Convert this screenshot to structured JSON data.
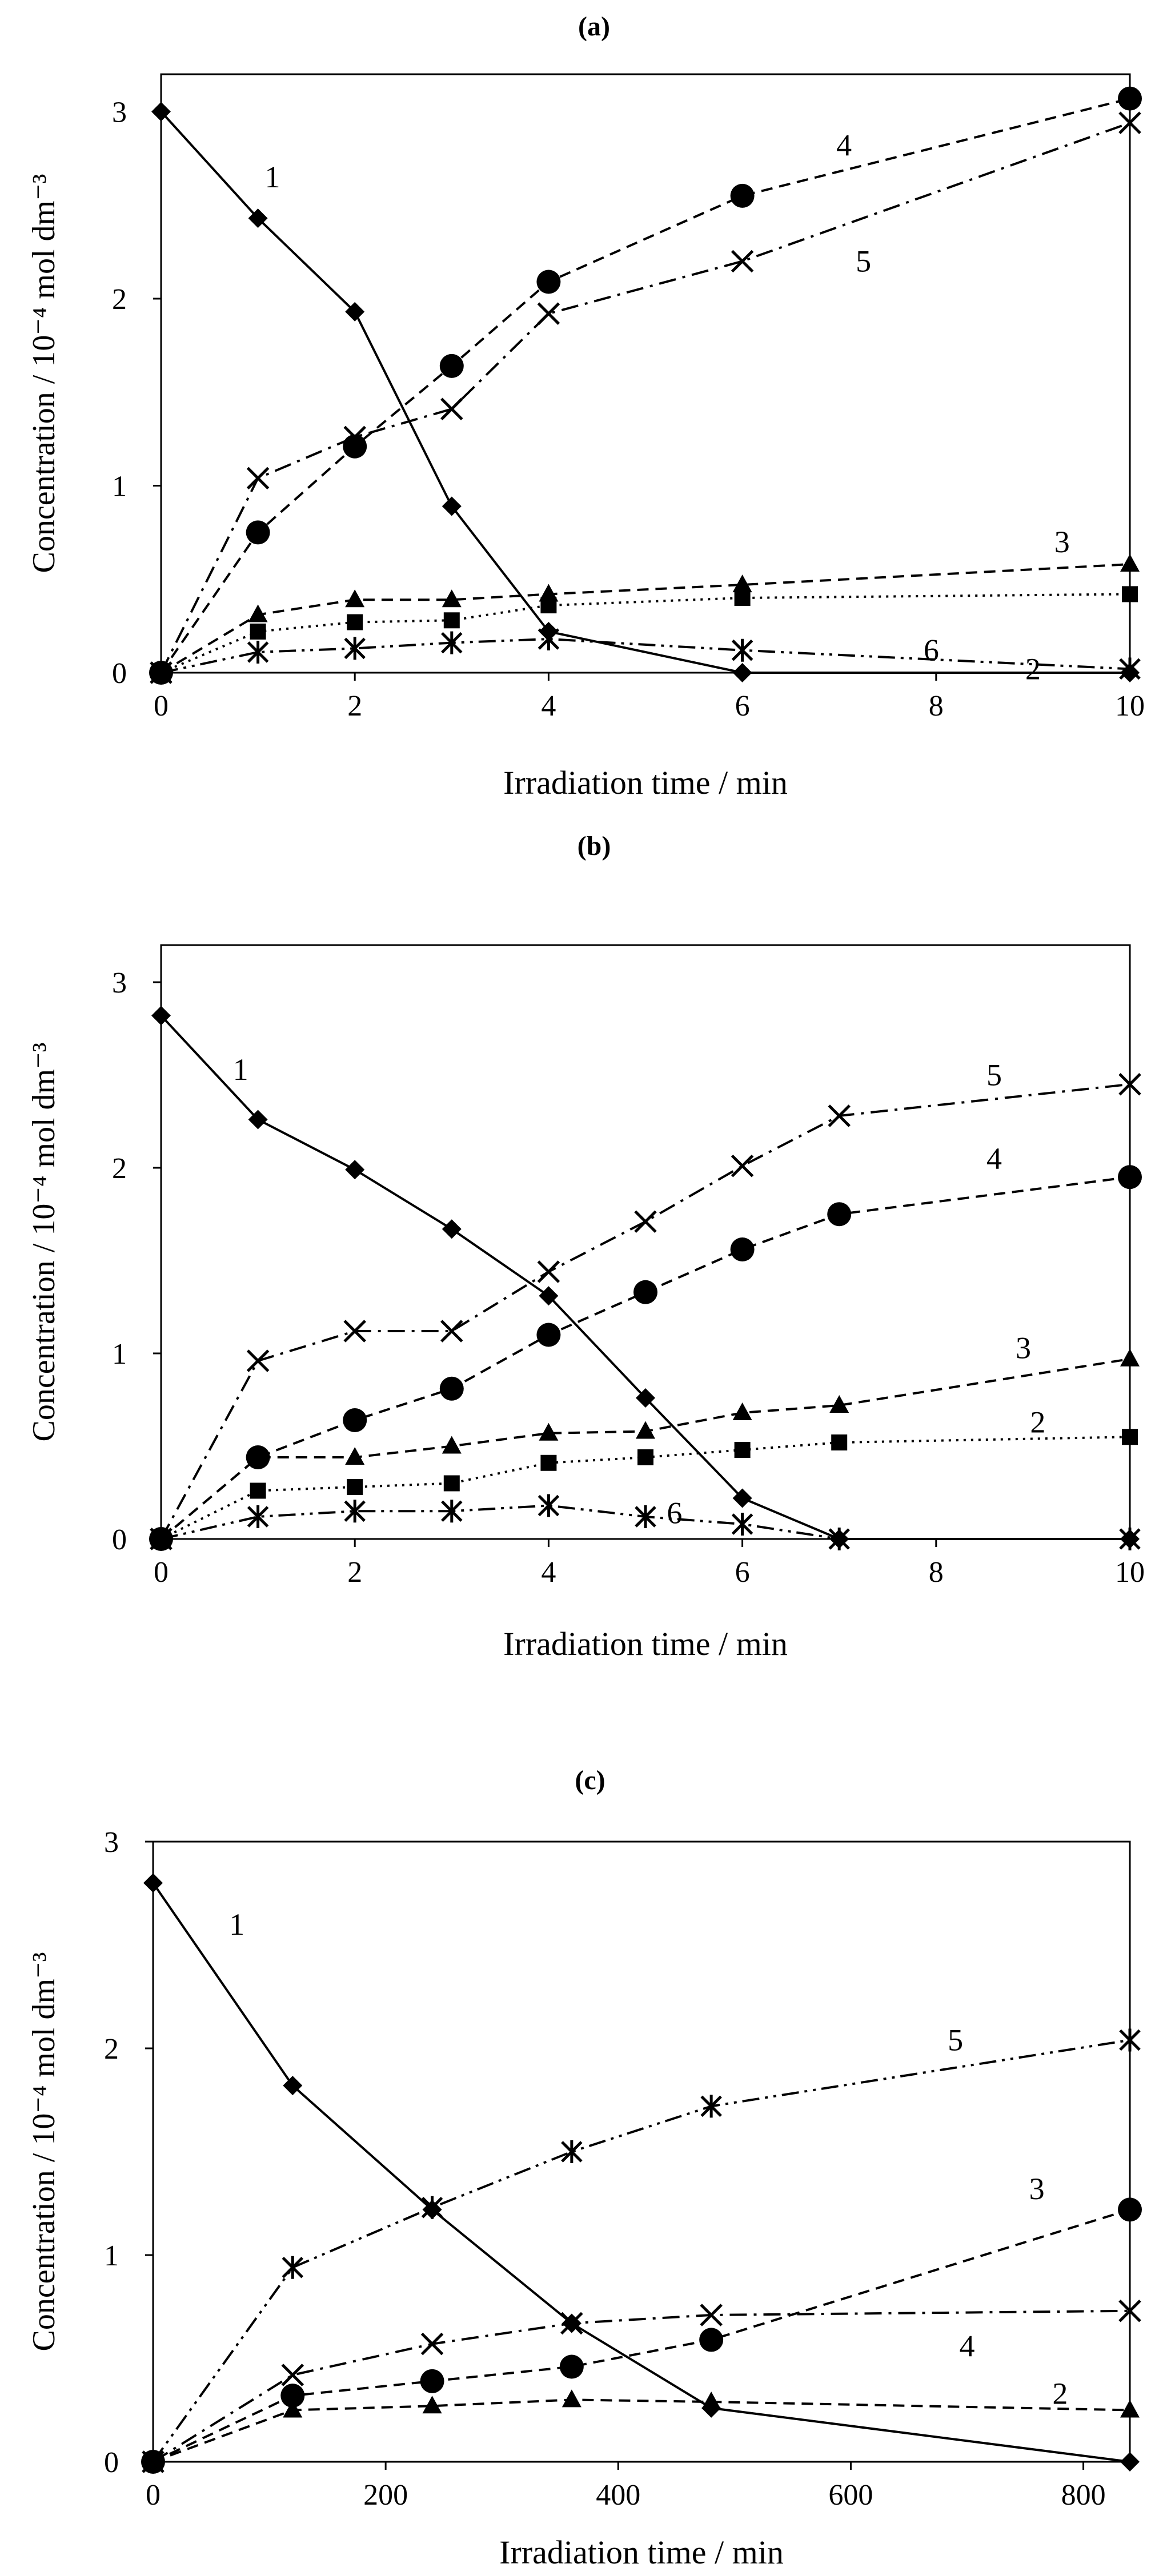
{
  "chart_data": [
    {
      "panel_label": "(a)",
      "type": "line",
      "xlabel": "Irradiation time / min",
      "ylabel": "Concentration / 10⁻⁴ mol dm⁻³",
      "xlim": [
        0,
        10
      ],
      "ylim": [
        0,
        3.2
      ],
      "xticks": [
        0,
        2,
        4,
        6,
        8,
        10
      ],
      "yticks": [
        0,
        1,
        2,
        3
      ],
      "series": [
        {
          "name": "1",
          "marker": "diamond",
          "dash": "solid",
          "x": [
            0,
            1,
            2,
            3,
            4,
            6,
            10
          ],
          "values": [
            3.0,
            2.43,
            1.93,
            0.89,
            0.22,
            0.0,
            0.0
          ]
        },
        {
          "name": "2",
          "marker": "square",
          "dash": "dotted",
          "x": [
            0,
            1,
            2,
            3,
            4,
            6,
            10
          ],
          "values": [
            0.0,
            0.22,
            0.27,
            0.28,
            0.36,
            0.4,
            0.42
          ]
        },
        {
          "name": "3",
          "marker": "triangle",
          "dash": "dash",
          "x": [
            0,
            1,
            2,
            3,
            4,
            6,
            10
          ],
          "values": [
            0.0,
            0.31,
            0.39,
            0.39,
            0.42,
            0.47,
            0.58
          ]
        },
        {
          "name": "4",
          "marker": "circle",
          "dash": "dash",
          "x": [
            0,
            1,
            2,
            3,
            4,
            6,
            10
          ],
          "values": [
            0.0,
            0.75,
            1.21,
            1.64,
            2.09,
            2.55,
            3.07
          ]
        },
        {
          "name": "5",
          "marker": "x",
          "dash": "dashdot",
          "x": [
            0,
            1,
            2,
            3,
            4,
            6,
            10
          ],
          "values": [
            0.0,
            1.04,
            1.26,
            1.41,
            1.92,
            2.2,
            2.94
          ]
        },
        {
          "name": "6",
          "marker": "star",
          "dash": "dashdotdot",
          "x": [
            0,
            1,
            2,
            3,
            4,
            6,
            10
          ],
          "values": [
            0.0,
            0.11,
            0.13,
            0.16,
            0.18,
            0.12,
            0.02
          ]
        }
      ],
      "curve_labels": [
        {
          "text": "1",
          "x": 1.15,
          "y": 2.65
        },
        {
          "text": "4",
          "x": 7.05,
          "y": 2.82
        },
        {
          "text": "5",
          "x": 7.25,
          "y": 2.2
        },
        {
          "text": "3",
          "x": 9.3,
          "y": 0.7
        },
        {
          "text": "6",
          "x": 7.95,
          "y": 0.12
        },
        {
          "text": "2",
          "x": 9.0,
          "y": 0.02
        }
      ]
    },
    {
      "panel_label": "(b)",
      "type": "line",
      "xlabel": "Irradiation time / min",
      "ylabel": "Concentration / 10⁻⁴ mol dm⁻³",
      "xlim": [
        0,
        10
      ],
      "ylim": [
        0,
        3.2
      ],
      "xticks": [
        0,
        2,
        4,
        6,
        8,
        10
      ],
      "yticks": [
        0,
        1,
        2,
        3
      ],
      "series": [
        {
          "name": "1",
          "marker": "diamond",
          "dash": "solid",
          "x": [
            0,
            1,
            2,
            3,
            4,
            5,
            6,
            7,
            10
          ],
          "values": [
            2.82,
            2.26,
            1.99,
            1.67,
            1.31,
            0.76,
            0.22,
            0.0,
            0.0
          ]
        },
        {
          "name": "2",
          "marker": "square",
          "dash": "dotted",
          "x": [
            0,
            1,
            2,
            3,
            4,
            5,
            6,
            7,
            10
          ],
          "values": [
            0.0,
            0.26,
            0.28,
            0.3,
            0.41,
            0.44,
            0.48,
            0.52,
            0.55
          ]
        },
        {
          "name": "3",
          "marker": "triangle",
          "dash": "dash",
          "x": [
            0,
            1,
            2,
            3,
            4,
            5,
            6,
            7,
            10
          ],
          "values": [
            0.0,
            0.44,
            0.44,
            0.5,
            0.57,
            0.58,
            0.68,
            0.72,
            0.97
          ]
        },
        {
          "name": "4",
          "marker": "circle",
          "dash": "dash",
          "x": [
            0,
            1,
            2,
            3,
            4,
            5,
            6,
            7,
            10
          ],
          "values": [
            0.0,
            0.44,
            0.64,
            0.81,
            1.1,
            1.33,
            1.56,
            1.75,
            1.95
          ]
        },
        {
          "name": "5",
          "marker": "x",
          "dash": "dashdot",
          "x": [
            0,
            1,
            2,
            3,
            4,
            5,
            6,
            7,
            10
          ],
          "values": [
            0.0,
            0.96,
            1.12,
            1.12,
            1.44,
            1.71,
            2.01,
            2.28,
            2.45
          ]
        },
        {
          "name": "6",
          "marker": "star",
          "dash": "dashdotdot",
          "x": [
            0,
            1,
            2,
            3,
            4,
            5,
            6,
            7,
            10
          ],
          "values": [
            0.0,
            0.12,
            0.15,
            0.15,
            0.18,
            0.12,
            0.08,
            0.0,
            0.0
          ]
        }
      ],
      "curve_labels": [
        {
          "text": "1",
          "x": 0.82,
          "y": 2.53
        },
        {
          "text": "5",
          "x": 8.6,
          "y": 2.5
        },
        {
          "text": "4",
          "x": 8.6,
          "y": 2.05
        },
        {
          "text": "3",
          "x": 8.9,
          "y": 1.03
        },
        {
          "text": "2",
          "x": 9.05,
          "y": 0.63
        },
        {
          "text": "6",
          "x": 5.3,
          "y": 0.14
        }
      ]
    },
    {
      "panel_label": "(c)",
      "type": "line",
      "xlabel": "Irradiation time / min",
      "ylabel": "Concentration / 10⁻⁴ mol dm⁻³",
      "xlim": [
        0,
        840
      ],
      "ylim": [
        0,
        3.0
      ],
      "xticks": [
        0,
        200,
        400,
        600,
        800
      ],
      "yticks": [
        0,
        1,
        2,
        3
      ],
      "series": [
        {
          "name": "1",
          "marker": "diamond",
          "dash": "solid",
          "x": [
            0,
            120,
            240,
            360,
            480,
            840
          ],
          "values": [
            2.8,
            1.82,
            1.22,
            0.67,
            0.26,
            0.0
          ]
        },
        {
          "name": "2",
          "marker": "triangle",
          "dash": "dash",
          "x": [
            0,
            120,
            240,
            360,
            480,
            840
          ],
          "values": [
            0.0,
            0.25,
            0.27,
            0.3,
            0.29,
            0.25
          ]
        },
        {
          "name": "3",
          "marker": "circle",
          "dash": "dash",
          "x": [
            0,
            120,
            240,
            360,
            480,
            840
          ],
          "values": [
            0.0,
            0.32,
            0.39,
            0.46,
            0.59,
            1.22
          ]
        },
        {
          "name": "4",
          "marker": "x",
          "dash": "dashdot",
          "x": [
            0,
            120,
            240,
            360,
            480,
            840
          ],
          "values": [
            0.0,
            0.42,
            0.57,
            0.67,
            0.71,
            0.73
          ]
        },
        {
          "name": "5",
          "marker": "star",
          "dash": "dashdotdot",
          "x": [
            0,
            120,
            240,
            360,
            480,
            840
          ],
          "values": [
            0.0,
            0.94,
            1.23,
            1.5,
            1.72,
            2.04
          ]
        }
      ],
      "curve_labels": [
        {
          "text": "1",
          "x": 72,
          "y": 2.6
        },
        {
          "text": "5",
          "x": 690,
          "y": 2.04
        },
        {
          "text": "3",
          "x": 760,
          "y": 1.32
        },
        {
          "text": "4",
          "x": 700,
          "y": 0.56
        },
        {
          "text": "2",
          "x": 780,
          "y": 0.33
        }
      ]
    }
  ]
}
